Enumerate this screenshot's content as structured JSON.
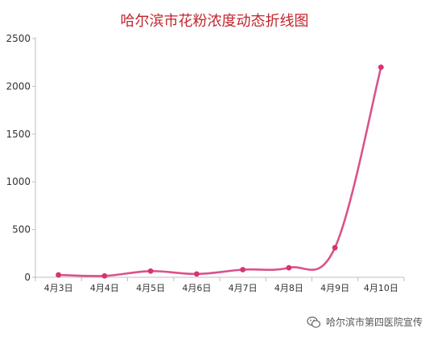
{
  "chart_data": {
    "type": "line",
    "title": "哈尔滨市花粉浓度动态折线图",
    "categories": [
      "4月3日",
      "4月4日",
      "4月5日",
      "4月6日",
      "4月7日",
      "4月8日",
      "4月9日",
      "4月10日"
    ],
    "series": [
      {
        "values": [
          25,
          15,
          65,
          35,
          80,
          100,
          310,
          2200
        ]
      }
    ],
    "ylim": [
      0,
      2500
    ],
    "yticks": [
      0,
      500,
      1000,
      1500,
      2000,
      2500
    ],
    "xlabel": "",
    "ylabel": "",
    "grid": false,
    "legend": "none",
    "line_color": "#d9538a",
    "marker_color": "#d6336f"
  },
  "watermark": {
    "text": "哈尔滨市第四医院宣传",
    "icon": "wechat-icon"
  }
}
